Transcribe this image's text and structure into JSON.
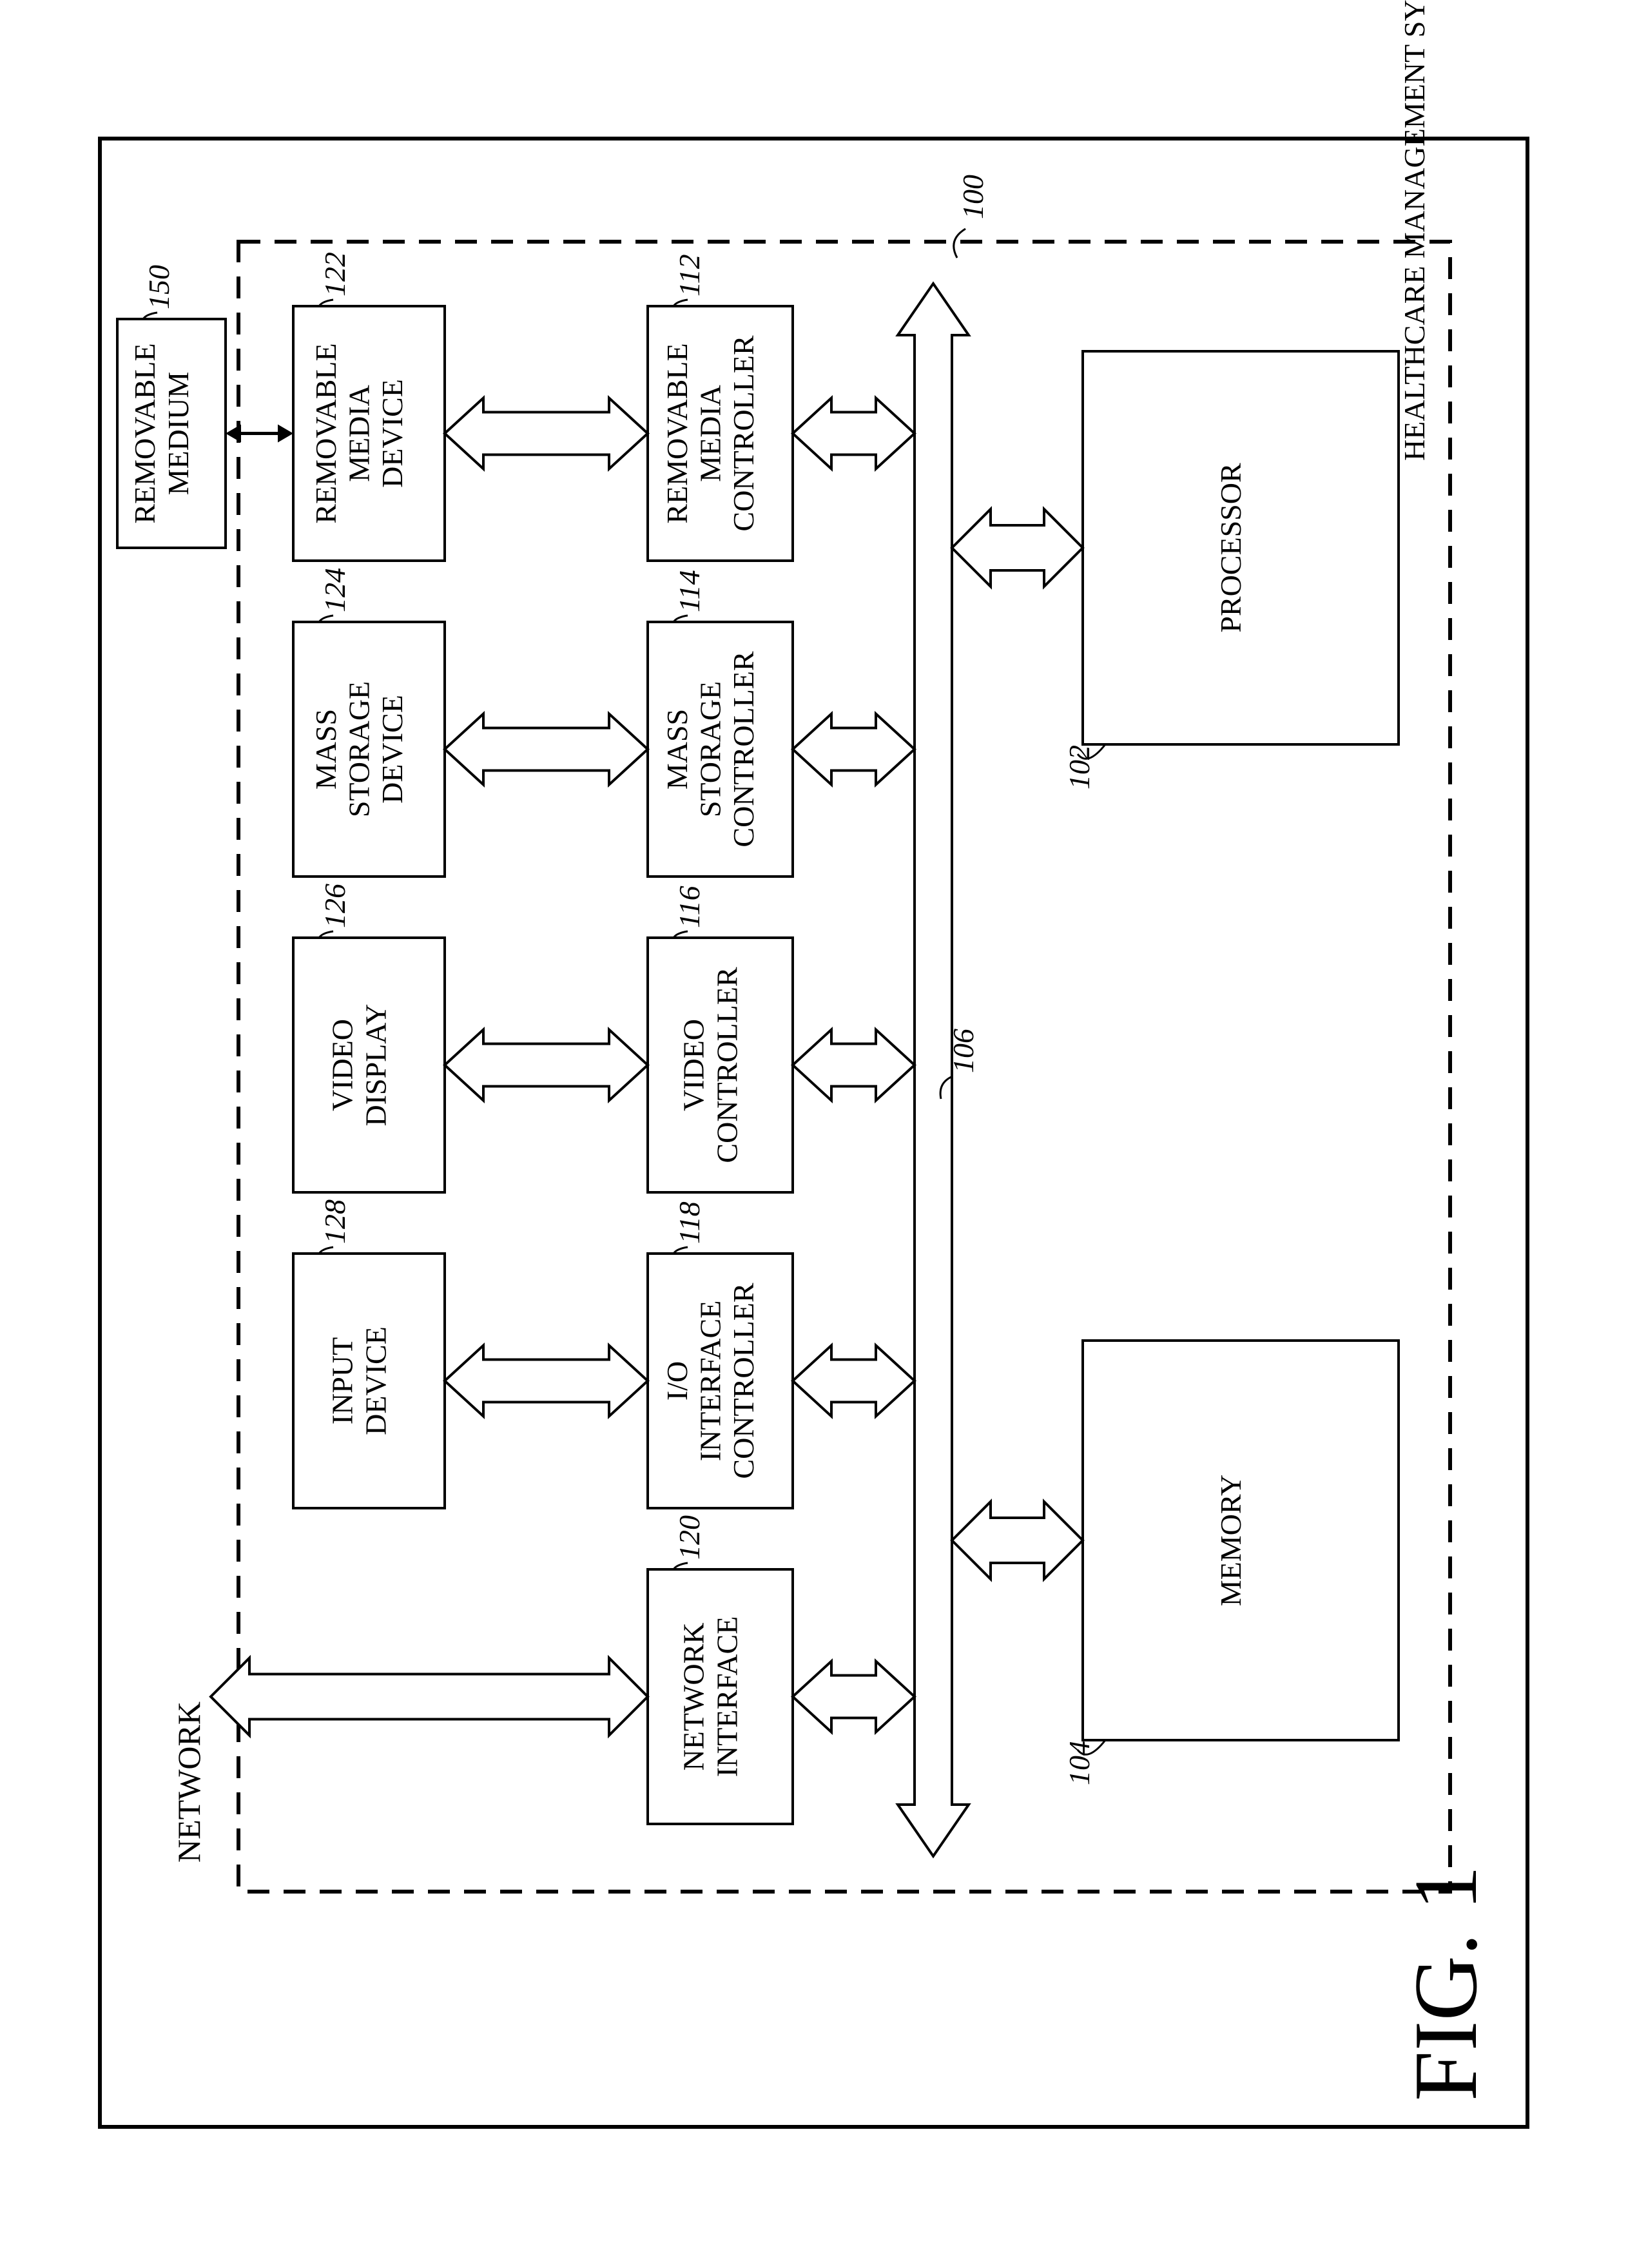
{
  "figure": {
    "caption": "FIG. 1",
    "system_title": "HEALTHCARE MANAGEMENT SYSTEM",
    "system_ref": "100",
    "bus_ref": "106",
    "network_label": "NETWORK",
    "stroke": "#000000",
    "fill": "#ffffff",
    "stroke_width_box": 4,
    "stroke_width_dash": 6,
    "dash_pattern": "34 22",
    "font": {
      "block": 46,
      "ref": 46,
      "caption": 140,
      "title": 46,
      "network": 50
    },
    "blocks": {
      "processor": {
        "label_lines": [
          "PROCESSOR"
        ],
        "ref": "102"
      },
      "memory": {
        "label_lines": [
          "MEMORY"
        ],
        "ref": "104"
      },
      "rmc": {
        "label_lines": [
          "REMOVABLE",
          "MEDIA",
          "CONTROLLER"
        ],
        "ref": "112"
      },
      "msc": {
        "label_lines": [
          "MASS",
          "STORAGE",
          "CONTROLLER"
        ],
        "ref": "114"
      },
      "vidc": {
        "label_lines": [
          "VIDEO",
          "CONTROLLER"
        ],
        "ref": "116"
      },
      "ioc": {
        "label_lines": [
          "I/O",
          "INTERFACE",
          "CONTROLLER"
        ],
        "ref": "118"
      },
      "netif": {
        "label_lines": [
          "NETWORK",
          "INTERFACE"
        ],
        "ref": "120"
      },
      "rmd": {
        "label_lines": [
          "REMOVABLE",
          "MEDIA",
          "DEVICE"
        ],
        "ref": "122"
      },
      "msd": {
        "label_lines": [
          "MASS",
          "STORAGE",
          "DEVICE"
        ],
        "ref": "124"
      },
      "vdisp": {
        "label_lines": [
          "VIDEO",
          "DISPLAY"
        ],
        "ref": "126"
      },
      "indev": {
        "label_lines": [
          "INPUT",
          "DEVICE"
        ],
        "ref": "128"
      },
      "rmedium": {
        "label_lines": [
          "REMOVABLE",
          "MEDIUM"
        ],
        "ref": "150"
      }
    }
  }
}
